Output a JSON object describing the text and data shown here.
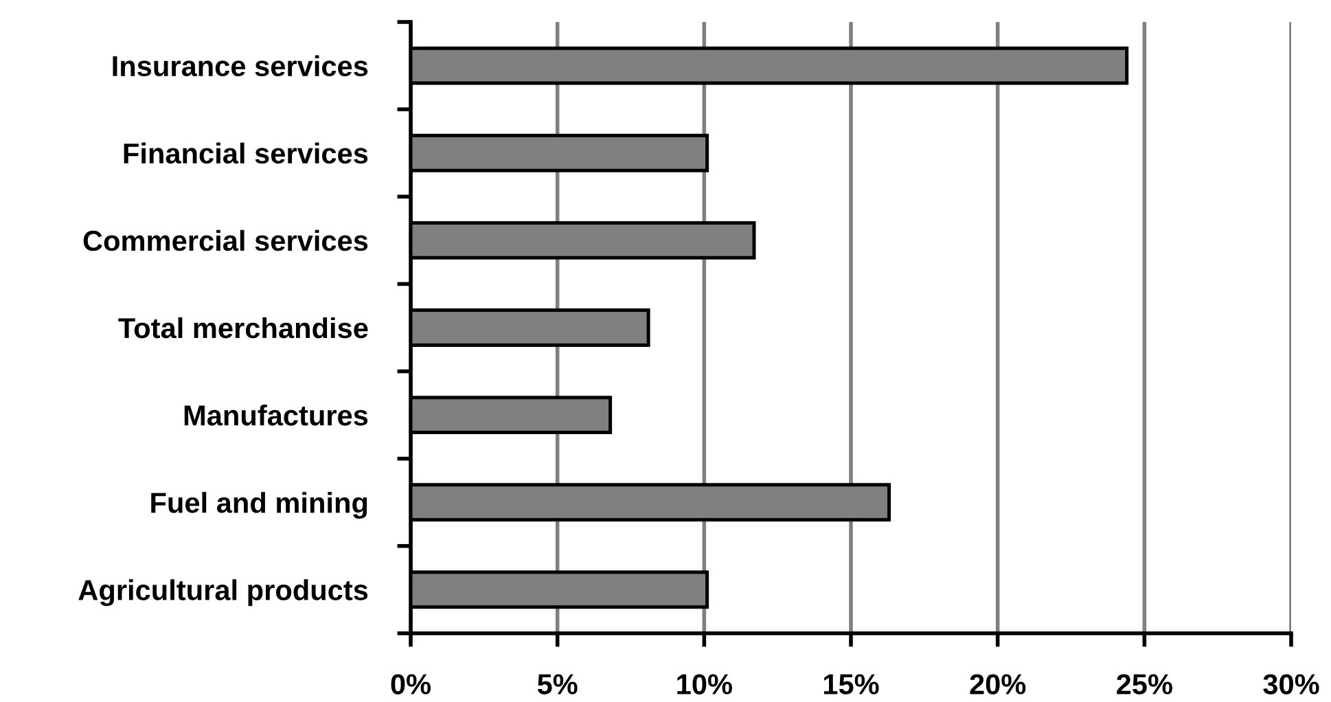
{
  "chart_data": {
    "type": "bar",
    "orientation": "horizontal",
    "categories": [
      "Insurance services",
      "Financial services",
      "Commercial services",
      "Total merchandise",
      "Manufactures",
      "Fuel and mining",
      "Agricultural products"
    ],
    "values": [
      24.4,
      10.1,
      11.7,
      8.1,
      6.8,
      16.3,
      10.1
    ],
    "color": "#808080",
    "xlim": [
      0,
      30
    ],
    "xticks": [
      {
        "value": 0,
        "label": "0%"
      },
      {
        "value": 5,
        "label": "5%"
      },
      {
        "value": 10,
        "label": "10%"
      },
      {
        "value": 15,
        "label": "15%"
      },
      {
        "value": 20,
        "label": "20%"
      },
      {
        "value": 25,
        "label": "25%"
      },
      {
        "value": 30,
        "label": "30%"
      }
    ],
    "grid": "x"
  }
}
